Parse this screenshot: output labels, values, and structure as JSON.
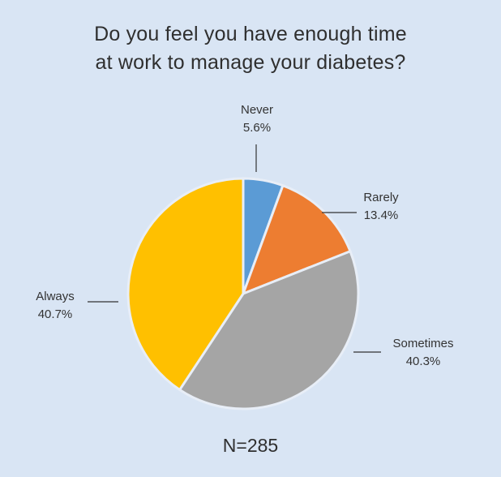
{
  "chart_data": {
    "type": "pie",
    "title": [
      "Do you feel you have enough time",
      "at work to manage your diabetes?"
    ],
    "footnote": "N=285",
    "slices": [
      {
        "label": "Never",
        "value_label": "5.6%",
        "value": 5.6,
        "color": "#5b9bd5"
      },
      {
        "label": "Rarely",
        "value_label": "13.4%",
        "value": 13.4,
        "color": "#ed7d31"
      },
      {
        "label": "Sometimes",
        "value_label": "40.3%",
        "value": 40.3,
        "color": "#a5a5a5"
      },
      {
        "label": "Always",
        "value_label": "40.7%",
        "value": 40.7,
        "color": "#ffc000"
      }
    ],
    "slice_border_color": "#e8eef7"
  }
}
